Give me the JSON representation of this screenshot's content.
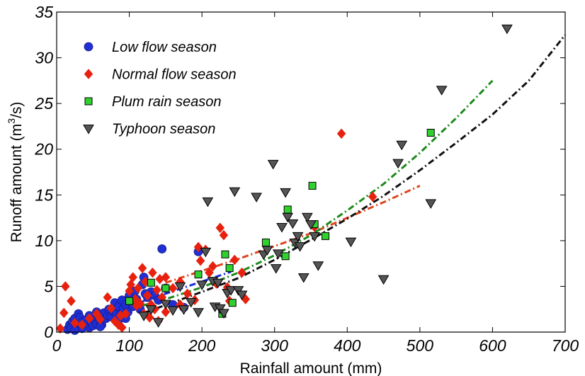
{
  "chart_data": {
    "type": "scatter",
    "title": "",
    "xlabel": "Rainfall amount (mm)",
    "ylabel_main": "Runoff amount (m",
    "ylabel_sup": "3",
    "ylabel_end": "/s)",
    "xlim": [
      0,
      700
    ],
    "ylim": [
      0,
      35
    ],
    "xticks": [
      "0",
      "100",
      "200",
      "300",
      "400",
      "500",
      "600",
      "700"
    ],
    "yticks": [
      "0",
      "5",
      "10",
      "15",
      "20",
      "25",
      "30",
      "35"
    ],
    "grid": false,
    "legend_position": "top-left",
    "series": [
      {
        "name": "Low flow season",
        "marker": "circle",
        "color": "#1f2fd6",
        "points": [
          [
            15,
            0.3
          ],
          [
            18,
            0.8
          ],
          [
            20,
            0.5
          ],
          [
            22,
            1.2
          ],
          [
            25,
            1.5
          ],
          [
            28,
            0.9
          ],
          [
            30,
            2.0
          ],
          [
            32,
            1.6
          ],
          [
            35,
            1.1
          ],
          [
            38,
            0.6
          ],
          [
            40,
            1.3
          ],
          [
            42,
            0.8
          ],
          [
            45,
            0.5
          ],
          [
            48,
            1.0
          ],
          [
            50,
            0.7
          ],
          [
            52,
            1.4
          ],
          [
            55,
            0.9
          ],
          [
            58,
            1.6
          ],
          [
            60,
            1.2
          ],
          [
            62,
            0.8
          ],
          [
            65,
            2.1
          ],
          [
            68,
            1.5
          ],
          [
            70,
            1.8
          ],
          [
            72,
            2.5
          ],
          [
            75,
            1.7
          ],
          [
            78,
            2.3
          ],
          [
            80,
            3.2
          ],
          [
            82,
            2.0
          ],
          [
            85,
            2.8
          ],
          [
            88,
            1.9
          ],
          [
            90,
            3.5
          ],
          [
            92,
            2.6
          ],
          [
            95,
            3.0
          ],
          [
            98,
            2.2
          ],
          [
            100,
            4.0
          ],
          [
            102,
            3.3
          ],
          [
            105,
            2.8
          ],
          [
            108,
            4.5
          ],
          [
            110,
            3.6
          ],
          [
            112,
            3.0
          ],
          [
            115,
            2.5
          ],
          [
            118,
            5.2
          ],
          [
            120,
            6.0
          ],
          [
            122,
            4.2
          ],
          [
            125,
            3.8
          ],
          [
            130,
            4.4
          ],
          [
            135,
            4.0
          ],
          [
            140,
            3.5
          ],
          [
            145,
            9.1
          ],
          [
            150,
            4.8
          ],
          [
            160,
            3.0
          ],
          [
            175,
            2.7
          ],
          [
            195,
            8.8
          ],
          [
            45,
            1.8
          ],
          [
            55,
            2.2
          ],
          [
            35,
            0.4
          ],
          [
            25,
            0.2
          ],
          [
            60,
            0.6
          ],
          [
            85,
            1.3
          ],
          [
            95,
            1.5
          ]
        ]
      },
      {
        "name": "Normal flow season",
        "marker": "diamond",
        "color": "#e8210f",
        "points": [
          [
            5,
            0.4
          ],
          [
            10,
            2.1
          ],
          [
            12,
            5.0
          ],
          [
            20,
            3.4
          ],
          [
            25,
            1.0
          ],
          [
            35,
            0.8
          ],
          [
            45,
            1.5
          ],
          [
            55,
            2.0
          ],
          [
            60,
            1.4
          ],
          [
            70,
            3.8
          ],
          [
            75,
            2.6
          ],
          [
            80,
            1.2
          ],
          [
            85,
            0.8
          ],
          [
            90,
            0.5
          ],
          [
            95,
            2.0
          ],
          [
            100,
            4.5
          ],
          [
            102,
            5.2
          ],
          [
            105,
            6.0
          ],
          [
            108,
            3.6
          ],
          [
            110,
            2.9
          ],
          [
            112,
            4.8
          ],
          [
            115,
            3.1
          ],
          [
            118,
            7.0
          ],
          [
            120,
            2.0
          ],
          [
            122,
            5.5
          ],
          [
            125,
            4.0
          ],
          [
            128,
            1.6
          ],
          [
            130,
            3.0
          ],
          [
            132,
            6.5
          ],
          [
            135,
            2.5
          ],
          [
            138,
            4.6
          ],
          [
            140,
            1.2
          ],
          [
            142,
            5.8
          ],
          [
            145,
            3.8
          ],
          [
            150,
            6.0
          ],
          [
            160,
            4.8
          ],
          [
            170,
            5.5
          ],
          [
            180,
            4.2
          ],
          [
            190,
            3.5
          ],
          [
            195,
            9.3
          ],
          [
            198,
            7.8
          ],
          [
            205,
            9.0
          ],
          [
            210,
            6.5
          ],
          [
            215,
            7.2
          ],
          [
            220,
            5.3
          ],
          [
            225,
            11.4
          ],
          [
            230,
            10.6
          ],
          [
            235,
            4.9
          ],
          [
            238,
            3.4
          ],
          [
            245,
            7.9
          ],
          [
            255,
            6.5
          ],
          [
            260,
            3.6
          ],
          [
            355,
            11.5
          ],
          [
            392,
            21.7
          ],
          [
            435,
            14.8
          ],
          [
            88,
            1.8
          ],
          [
            150,
            2.2
          ],
          [
            170,
            3.0
          ]
        ]
      },
      {
        "name": "Plum rain season",
        "marker": "square",
        "color": "#2ed12e",
        "points": [
          [
            195,
            6.3
          ],
          [
            228,
            2.0
          ],
          [
            232,
            8.5
          ],
          [
            238,
            7.0
          ],
          [
            242,
            3.2
          ],
          [
            288,
            9.8
          ],
          [
            315,
            8.3
          ],
          [
            318,
            13.4
          ],
          [
            352,
            16.0
          ],
          [
            355,
            11.8
          ],
          [
            370,
            10.5
          ],
          [
            515,
            21.8
          ],
          [
            100,
            3.4
          ],
          [
            130,
            5.4
          ],
          [
            150,
            4.8
          ]
        ]
      },
      {
        "name": "Typhoon season",
        "marker": "triangle-down",
        "color": "#555555",
        "points": [
          [
            130,
            2.5
          ],
          [
            140,
            1.1
          ],
          [
            150,
            3.1
          ],
          [
            160,
            2.4
          ],
          [
            170,
            5.0
          ],
          [
            175,
            2.5
          ],
          [
            185,
            3.3
          ],
          [
            195,
            2.2
          ],
          [
            200,
            5.2
          ],
          [
            205,
            8.8
          ],
          [
            208,
            14.3
          ],
          [
            215,
            5.6
          ],
          [
            218,
            2.8
          ],
          [
            222,
            5.4
          ],
          [
            225,
            2.6
          ],
          [
            230,
            2.1
          ],
          [
            235,
            4.3
          ],
          [
            240,
            4.6
          ],
          [
            245,
            15.4
          ],
          [
            250,
            4.6
          ],
          [
            255,
            4.1
          ],
          [
            275,
            14.8
          ],
          [
            285,
            8.5
          ],
          [
            290,
            9.0
          ],
          [
            298,
            18.4
          ],
          [
            302,
            7.0
          ],
          [
            305,
            8.6
          ],
          [
            310,
            11.5
          ],
          [
            315,
            15.3
          ],
          [
            318,
            12.6
          ],
          [
            325,
            11.9
          ],
          [
            328,
            9.8
          ],
          [
            332,
            10.5
          ],
          [
            335,
            9.4
          ],
          [
            340,
            6.0
          ],
          [
            345,
            12.6
          ],
          [
            350,
            11.8
          ],
          [
            355,
            10.5
          ],
          [
            360,
            7.3
          ],
          [
            405,
            9.9
          ],
          [
            450,
            5.8
          ],
          [
            470,
            18.5
          ],
          [
            475,
            20.5
          ],
          [
            515,
            14.1
          ],
          [
            530,
            26.5
          ],
          [
            620,
            33.2
          ],
          [
            120,
            1.8
          ]
        ]
      }
    ],
    "fit_lines": [
      {
        "series": "Low flow season",
        "color": "#1f2fd6",
        "x": [
          60,
          240
        ],
        "y": [
          1.8,
          6.6
        ]
      },
      {
        "series": "Normal flow season",
        "color": "#e0441c",
        "x": [
          150,
          200,
          250,
          300,
          350,
          400,
          450,
          500
        ],
        "y": [
          5.4,
          6.7,
          8.0,
          9.4,
          10.8,
          12.5,
          14.2,
          16.0
        ]
      },
      {
        "series": "Plum rain season",
        "color": "#1a8a1a",
        "x": [
          100,
          150,
          200,
          250,
          300,
          350,
          400,
          450,
          500,
          550,
          600
        ],
        "y": [
          2.5,
          3.6,
          4.9,
          6.5,
          8.4,
          10.6,
          13.3,
          16.2,
          19.6,
          23.4,
          27.5
        ]
      },
      {
        "series": "Typhoon season",
        "color": "#111111",
        "x": [
          120,
          200,
          250,
          300,
          350,
          400,
          450,
          500,
          550,
          600,
          650,
          700
        ],
        "y": [
          2.1,
          4.4,
          5.9,
          7.9,
          10.1,
          12.4,
          14.9,
          17.7,
          20.7,
          23.8,
          27.5,
          32.5
        ]
      }
    ]
  }
}
